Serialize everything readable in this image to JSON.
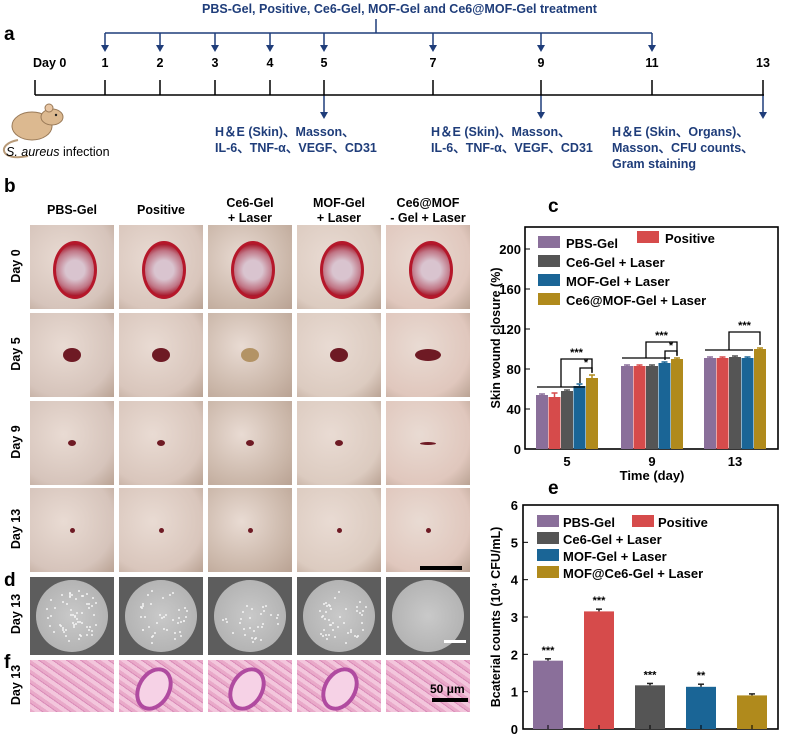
{
  "panel_a": {
    "label": "a",
    "treatment_title": "PBS-Gel, Positive, Ce6-Gel, MOF-Gel  and Ce6@MOF-Gel treatment",
    "day0": "Day 0",
    "days": [
      "1",
      "2",
      "3",
      "4",
      "5",
      "7",
      "9",
      "11",
      "13"
    ],
    "infection": "infection",
    "infection_species": "S. aureus",
    "analysis": [
      [
        "H＆E (Skin)、Masson、",
        "IL-6、TNF-α、VEGF、CD31"
      ],
      [
        "H＆E (Skin)、Masson、",
        "IL-6、TNF-α、VEGF、CD31"
      ],
      [
        "H＆E (Skin、Organs)、",
        "Masson、CFU counts、",
        "Gram staining"
      ]
    ]
  },
  "panel_b": {
    "label": "b",
    "columns": [
      [
        "PBS-Gel",
        ""
      ],
      [
        "Positive",
        ""
      ],
      [
        "Ce6-Gel",
        "+ Laser"
      ],
      [
        "MOF-Gel",
        "+ Laser"
      ],
      [
        "Ce6@MOF",
        "- Gel + Laser"
      ]
    ],
    "rows": [
      "Day 0",
      "Day 5",
      "Day 9",
      "Day 13"
    ]
  },
  "panel_d": {
    "label": "d",
    "row": "Day 13"
  },
  "panel_f": {
    "label": "f",
    "row": "Day 13",
    "scale": "50 μm"
  },
  "colors": {
    "PBS-Gel": "#8a6f9a",
    "Positive": "#d64b4b",
    "Ce6": "#555555",
    "MOF": "#1a6596",
    "Ce6MOF": "#b08a1c",
    "timeline": "#1f3d7a"
  },
  "chart_data": [
    {
      "panel": "c",
      "type": "bar",
      "xlabel": "Time (day)",
      "ylabel": "Skin wound closure (%)",
      "categories": [
        "5",
        "9",
        "13"
      ],
      "ylim": [
        0,
        220
      ],
      "yticks": [
        "0",
        "40",
        "80",
        "120",
        "160",
        "200"
      ],
      "legend_placement": "top-left",
      "series": [
        {
          "name": "PBS-Gel",
          "values": [
            54,
            83,
            91
          ],
          "errors": [
            1,
            1,
            1
          ]
        },
        {
          "name": "Positive",
          "values": [
            52,
            83,
            91
          ],
          "errors": [
            4,
            1,
            1
          ]
        },
        {
          "name": "Ce6-Gel + Laser",
          "values": [
            58,
            83,
            92
          ],
          "errors": [
            1,
            1,
            1
          ]
        },
        {
          "name": "MOF-Gel + Laser",
          "values": [
            63,
            86,
            91
          ],
          "errors": [
            2,
            1,
            1
          ]
        },
        {
          "name": "Ce6@MOF-Gel + Laser",
          "values": [
            71,
            90,
            100
          ],
          "errors": [
            3,
            1,
            1
          ]
        }
      ],
      "annotations": [
        {
          "category": "5",
          "label": "***",
          "type": "group-vs-last"
        },
        {
          "category": "5",
          "label": "*",
          "type": "mof-vs-last"
        },
        {
          "category": "9",
          "label": "***",
          "type": "group-vs-last"
        },
        {
          "category": "9",
          "label": "*",
          "type": "mof-vs-last"
        },
        {
          "category": "13",
          "label": "***",
          "type": "group-vs-last"
        }
      ]
    },
    {
      "panel": "e",
      "type": "bar",
      "ylabel": "Bcaterial counts (10⁴ CFU/mL)",
      "ylim": [
        0,
        6
      ],
      "yticks": [
        "0",
        "1",
        "2",
        "3",
        "4",
        "5",
        "6"
      ],
      "legend_placement": "top-left",
      "series": [
        {
          "name": "PBS-Gel",
          "value": 1.83,
          "error": 0.05,
          "sig": "***"
        },
        {
          "name": "Positive",
          "value": 3.15,
          "error": 0.06,
          "sig": "***"
        },
        {
          "name": "Ce6-Gel + Laser",
          "value": 1.17,
          "error": 0.05,
          "sig": "***"
        },
        {
          "name": "MOF-Gel + Laser",
          "value": 1.13,
          "error": 0.07,
          "sig": "**"
        },
        {
          "name": "MOF@Ce6-Gel + Laser",
          "value": 0.9,
          "error": 0.04,
          "sig": ""
        }
      ]
    }
  ]
}
